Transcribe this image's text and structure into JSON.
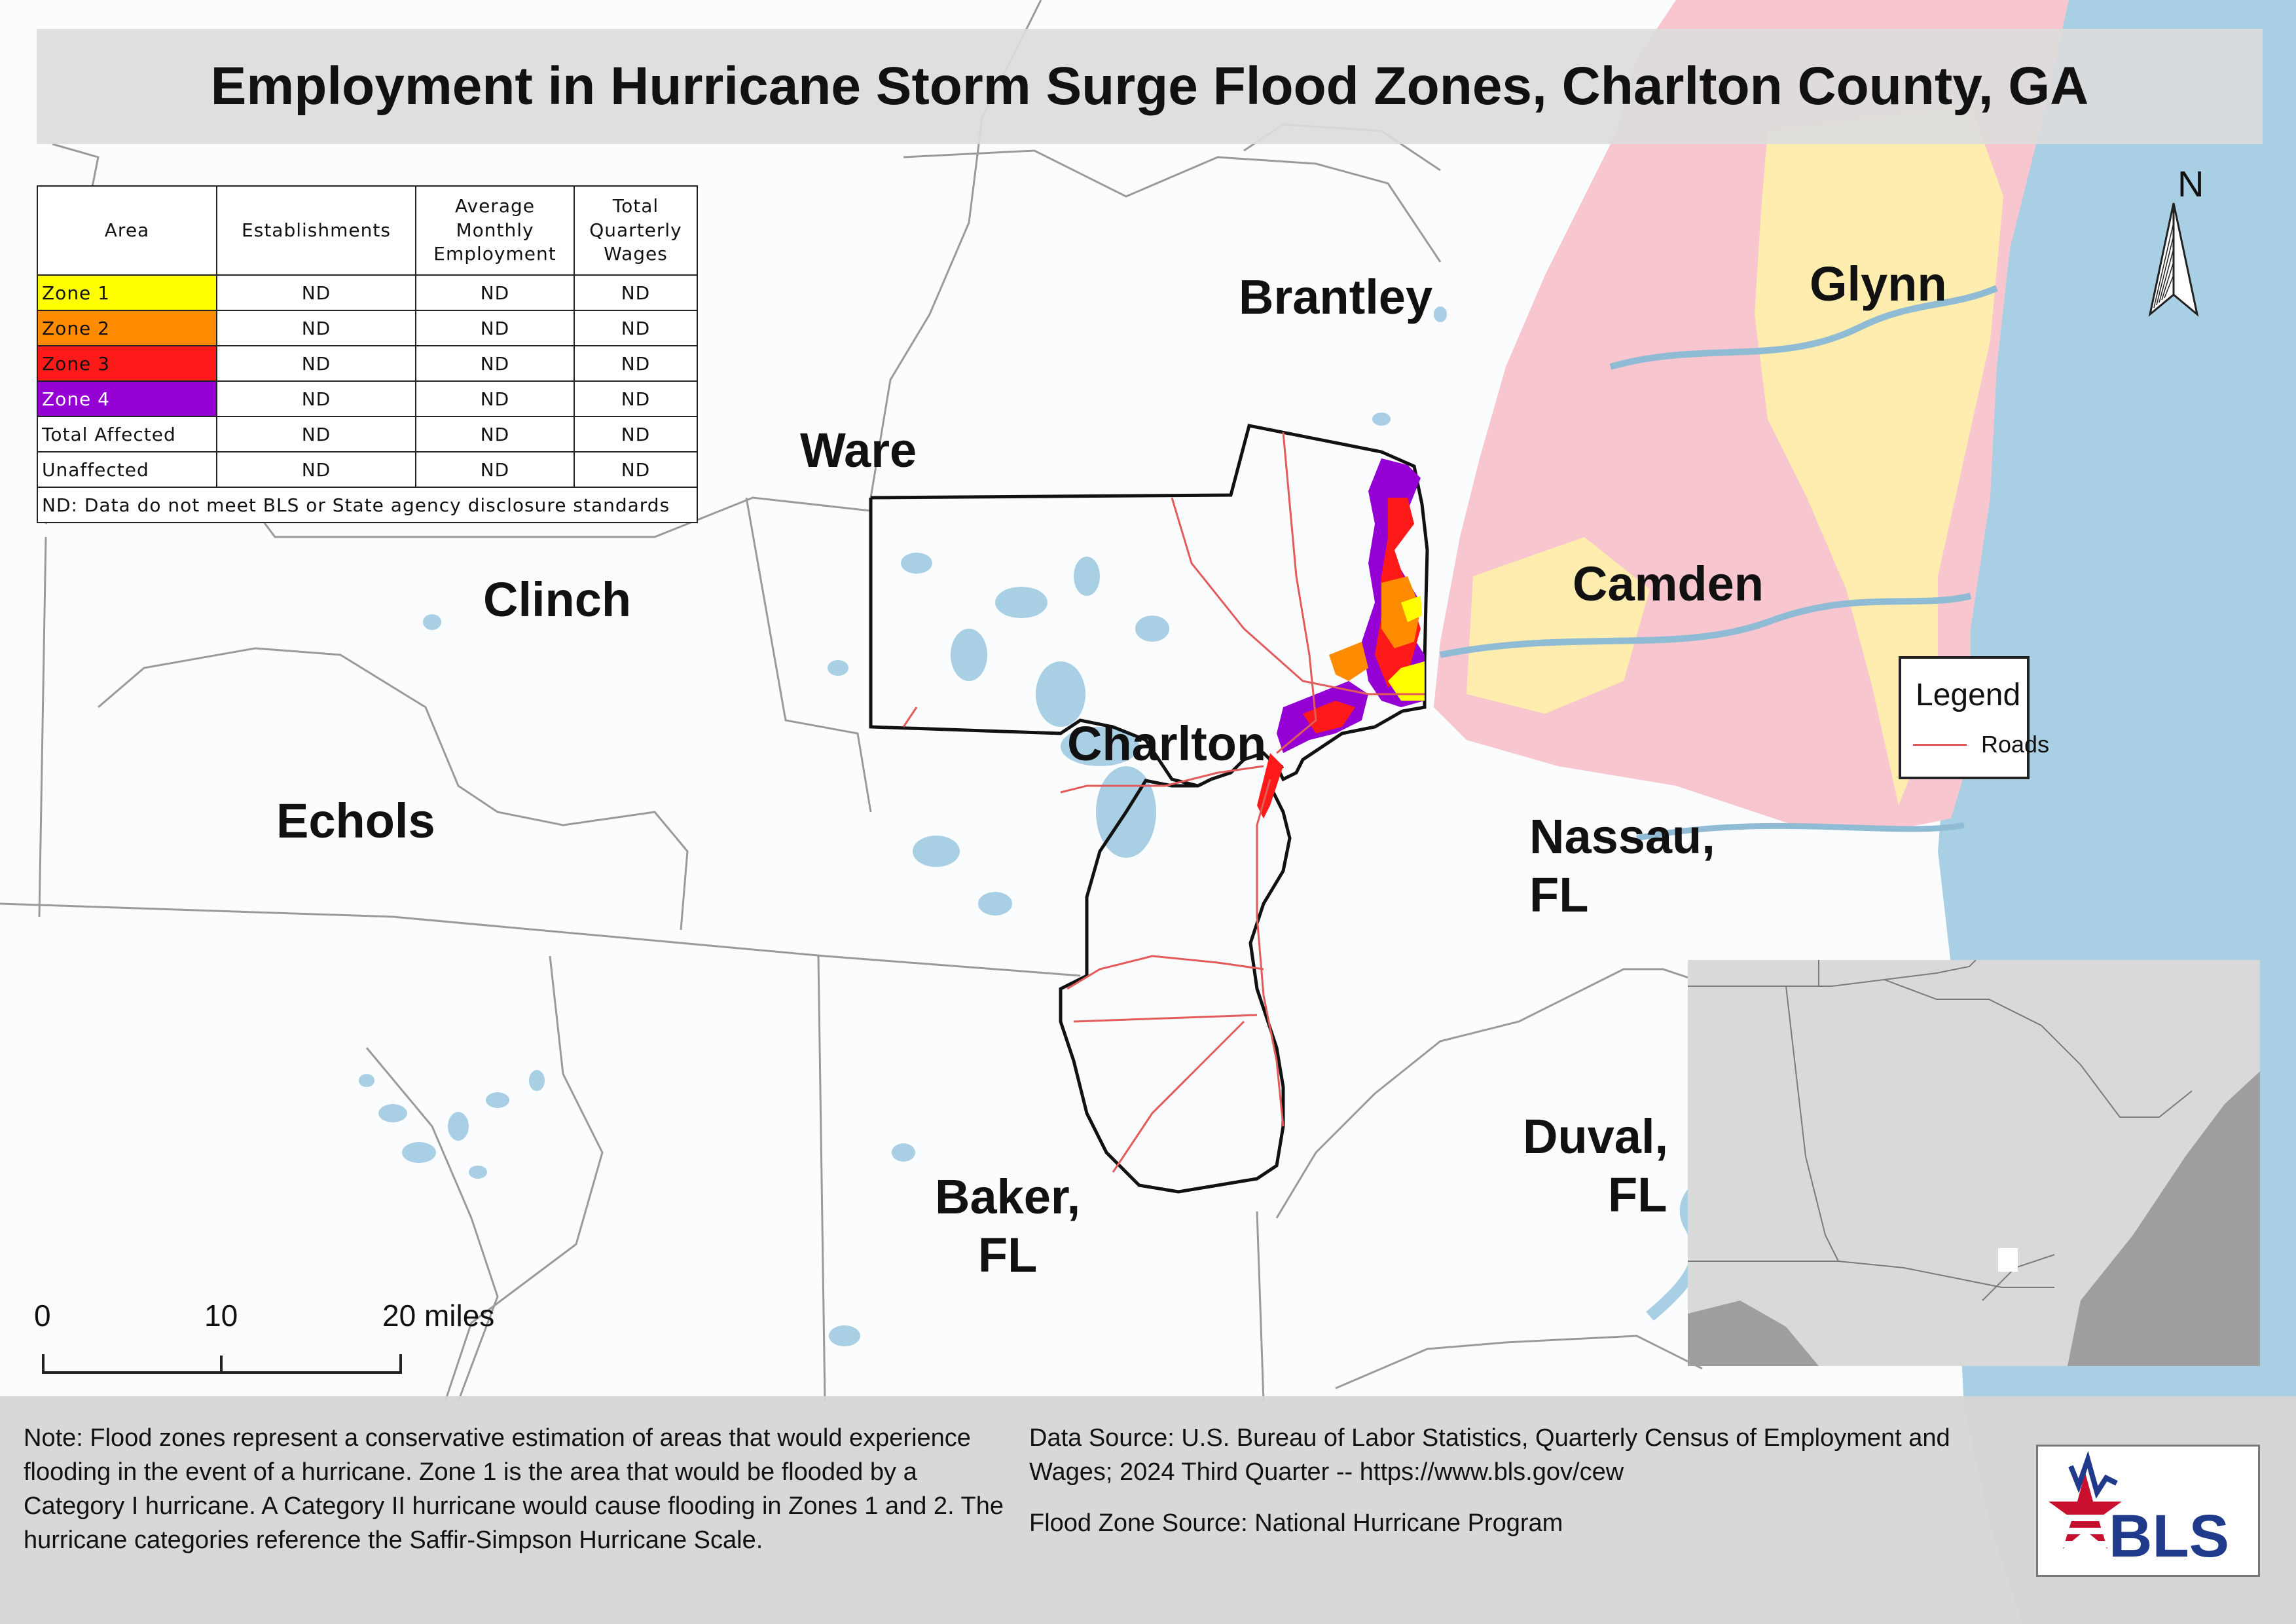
{
  "title": "Employment in Hurricane Storm Surge Flood Zones, Charlton County, GA",
  "table": {
    "headers": [
      "Area",
      "Establishments",
      "Average Monthly Employment",
      "Total Quarterly Wages"
    ],
    "rows": [
      {
        "area": "Zone 1",
        "establishments": "ND",
        "employment": "ND",
        "wages": "ND",
        "color": "#ffff00"
      },
      {
        "area": "Zone 2",
        "establishments": "ND",
        "employment": "ND",
        "wages": "ND",
        "color": "#ff8c00"
      },
      {
        "area": "Zone 3",
        "establishments": "ND",
        "employment": "ND",
        "wages": "ND",
        "color": "#ff1a1a"
      },
      {
        "area": "Zone 4",
        "establishments": "ND",
        "employment": "ND",
        "wages": "ND",
        "color": "#9400d3"
      },
      {
        "area": "Total Affected",
        "establishments": "ND",
        "employment": "ND",
        "wages": "ND"
      },
      {
        "area": "Unaffected",
        "establishments": "ND",
        "employment": "ND",
        "wages": "ND"
      }
    ],
    "footnote": "ND: Data do not meet BLS or State agency disclosure standards"
  },
  "counties": {
    "brantley": "Brantley",
    "glynn": "Glynn",
    "ware": "Ware",
    "camden": "Camden",
    "clinch": "Clinch",
    "charlton": "Charlton",
    "echols": "Echols",
    "nassau": "Nassau,",
    "nassau_state": "FL",
    "duval": "Duval,",
    "duval_state": "FL",
    "baker": "Baker,",
    "baker_state": "FL"
  },
  "legend": {
    "title": "Legend",
    "roads": "Roads",
    "roads_color": "#e35a5a"
  },
  "north_arrow": "N",
  "scale": {
    "zero": "0",
    "mid": "10",
    "end": "20 miles"
  },
  "footer": {
    "note": "Note: Flood zones represent a conservative estimation of areas that would experience flooding in the event of a hurricane. Zone 1 is the area that would be flooded by a Category I hurricane. A Category II hurricane would cause flooding in Zones 1 and 2. The hurricane categories reference the Saffir-Simpson Hurricane Scale.",
    "data_source": "Data Source: U.S. Bureau of Labor Statistics, Quarterly Census of Employment and Wages; 2024 Third Quarter -- https://www.bls.gov/cew",
    "flood_source": "Flood Zone Source: National Hurricane Program"
  },
  "logo_text": "BLS",
  "colors": {
    "water": "#a8cfe3",
    "coastal_pink": "#f7c6cf",
    "coastal_yellow": "#fff3a8",
    "boundary": "#9a9a9a",
    "county_outline": "#111111"
  }
}
